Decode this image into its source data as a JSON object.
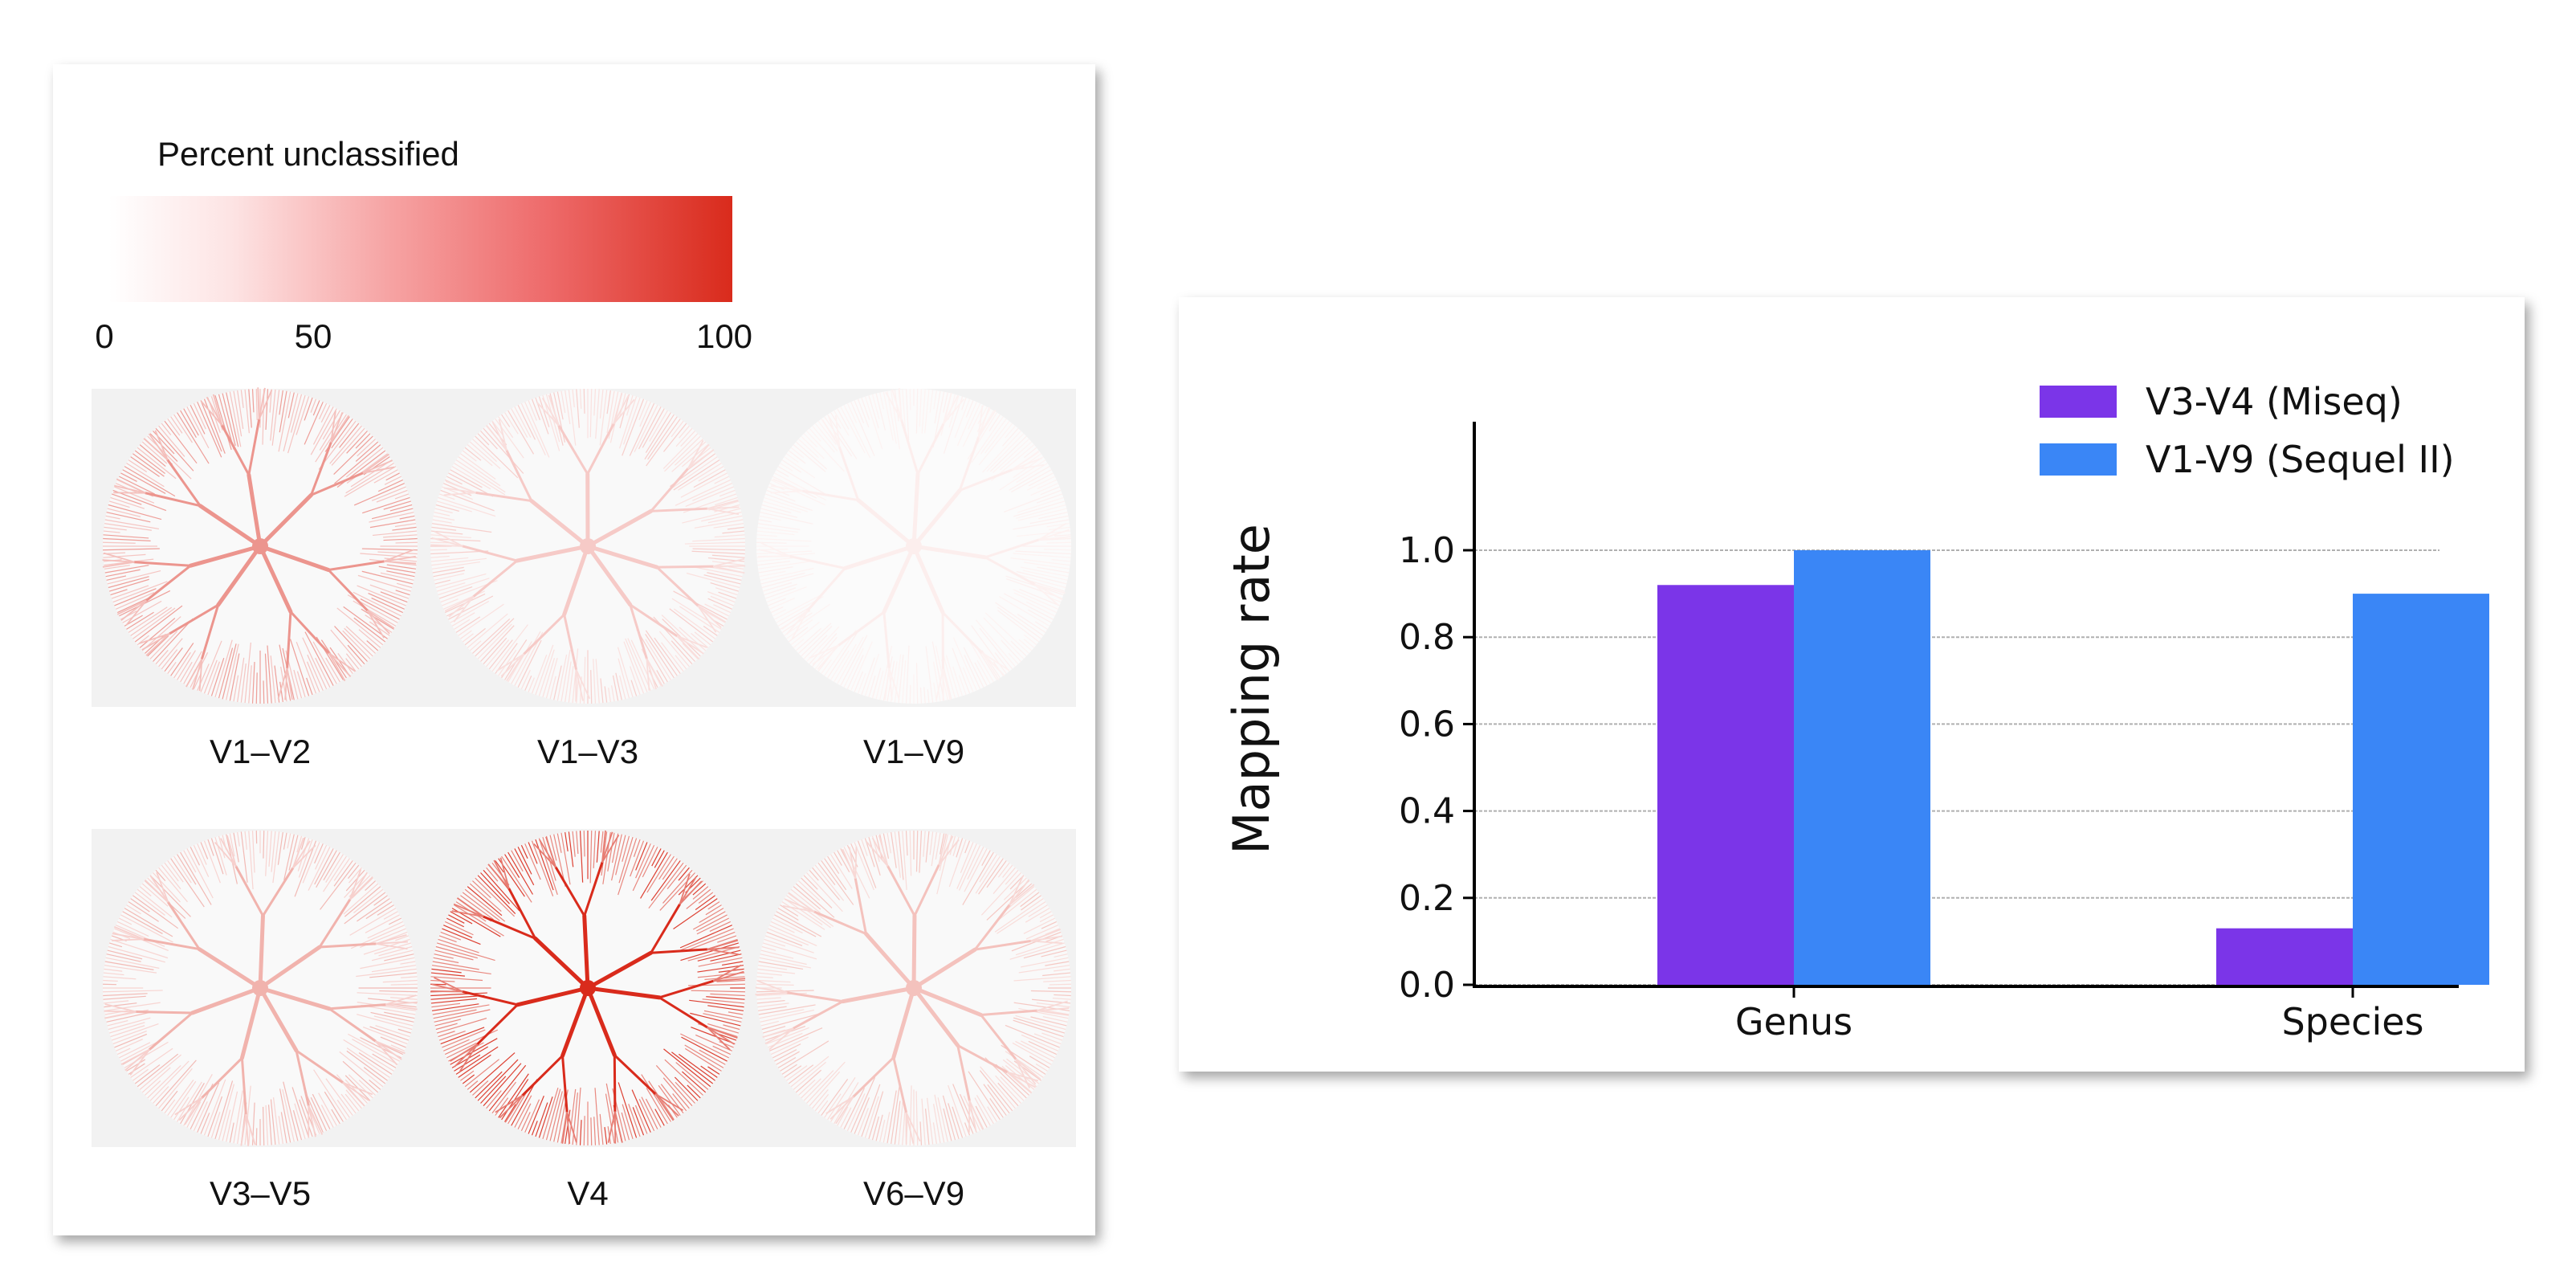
{
  "colorbar": {
    "title": "Percent unclassified",
    "ticks": [
      "0",
      "50",
      "100"
    ],
    "color_low": "#ffffff",
    "color_high": "#d92b1c"
  },
  "trees": [
    {
      "label": "V1–V2",
      "percent_unclassified": 30
    },
    {
      "label": "V1–V3",
      "percent_unclassified": 12
    },
    {
      "label": "V1–V9",
      "percent_unclassified": 0
    },
    {
      "label": "V3–V5",
      "percent_unclassified": 20
    },
    {
      "label": "V4",
      "percent_unclassified": 70
    },
    {
      "label": "V6–V9",
      "percent_unclassified": 15
    }
  ],
  "chart_data": {
    "type": "bar",
    "categories": [
      "Genus",
      "Species"
    ],
    "series": [
      {
        "name": "V3-V4 (Miseq)",
        "values": [
          0.92,
          0.13
        ],
        "color": "#7b35e8"
      },
      {
        "name": "V1-V9 (Sequel II)",
        "values": [
          1.0,
          0.9
        ],
        "color": "#3a86f6"
      }
    ],
    "ylabel": "Mapping rate",
    "xlabel": "",
    "ylim": [
      0,
      1.0
    ],
    "yticks": [
      "0.0",
      "0.2",
      "0.4",
      "0.6",
      "0.8",
      "1.0"
    ],
    "grid": true,
    "legend_position": "top-right"
  }
}
